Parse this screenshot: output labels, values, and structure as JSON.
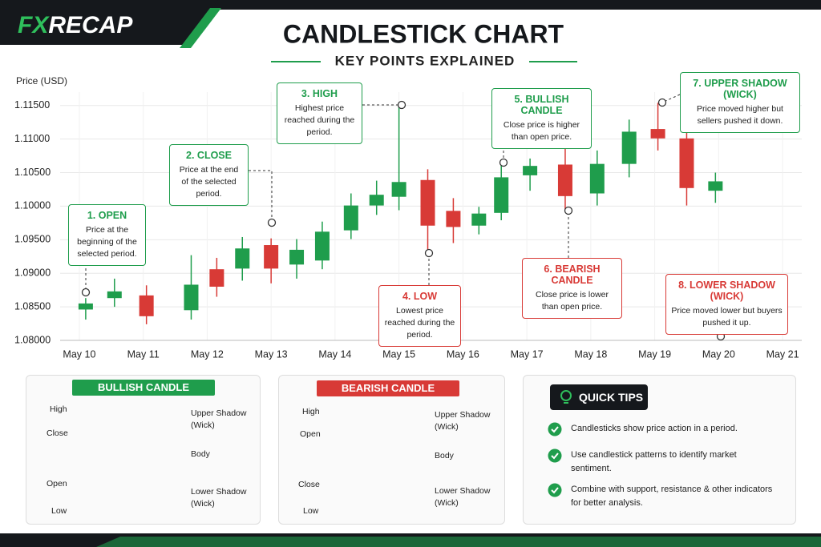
{
  "header": {
    "brand_fx": "FX",
    "brand_recap": "RECAP",
    "title": "CANDLESTICK CHART",
    "subtitle": "KEY POINTS EXPLAINED"
  },
  "chart_data": {
    "type": "candlestick",
    "y_label": "Price (USD)",
    "x": [
      10.1,
      10.55,
      11.05,
      11.75,
      12.15,
      12.55,
      13.0,
      13.4,
      13.8,
      14.25,
      14.65,
      15.0,
      15.45,
      15.85,
      16.25,
      16.6,
      17.05,
      17.6,
      18.1,
      18.6,
      19.05,
      19.5,
      19.95
    ],
    "open": [
      1.0846,
      1.0863,
      1.0867,
      1.0845,
      1.0906,
      1.0907,
      1.0942,
      1.0913,
      1.0919,
      1.0964,
      1.1001,
      1.1014,
      1.1039,
      1.0993,
      1.0971,
      1.099,
      1.1046,
      1.1062,
      1.1019,
      1.1063,
      1.1115,
      1.1101,
      1.1023
    ],
    "high": [
      1.0863,
      1.0892,
      1.0882,
      1.0927,
      1.0923,
      1.0954,
      1.0952,
      1.0951,
      1.0977,
      1.1019,
      1.1038,
      1.115,
      1.1055,
      1.1012,
      1.0999,
      1.1064,
      1.1071,
      1.1088,
      1.1083,
      1.1129,
      1.1154,
      1.1115,
      1.105
    ],
    "low": [
      1.0831,
      1.085,
      1.0824,
      1.0831,
      1.0865,
      1.0889,
      1.0885,
      1.0892,
      1.0906,
      1.0951,
      1.0987,
      1.0994,
      1.093,
      1.0945,
      1.0958,
      1.0979,
      1.1023,
      1.0993,
      1.1001,
      1.1043,
      1.1083,
      1.1001,
      1.1005
    ],
    "close": [
      1.0855,
      1.0873,
      1.0836,
      1.0883,
      1.088,
      1.0937,
      1.0907,
      1.0935,
      1.0962,
      1.1001,
      1.1017,
      1.1036,
      1.0971,
      1.0969,
      1.0989,
      1.1043,
      1.106,
      1.1015,
      1.1063,
      1.1111,
      1.1101,
      1.1027,
      1.1037
    ],
    "up_color": "#1f9d4c",
    "down_color": "#d83a36",
    "xlim": [
      9.7,
      21.3
    ],
    "xticks": [
      {
        "value": 10,
        "label": "May 10"
      },
      {
        "value": 11,
        "label": "May 11"
      },
      {
        "value": 12,
        "label": "May 12"
      },
      {
        "value": 13,
        "label": "May 13"
      },
      {
        "value": 14,
        "label": "May 14"
      },
      {
        "value": 15,
        "label": "May 15"
      },
      {
        "value": 16,
        "label": "May 16"
      },
      {
        "value": 17,
        "label": "May 17"
      },
      {
        "value": 18,
        "label": "May 18"
      },
      {
        "value": 19,
        "label": "May 19"
      },
      {
        "value": 20,
        "label": "May 20"
      },
      {
        "value": 21,
        "label": "May 21"
      }
    ],
    "ylim": [
      1.08,
      1.117
    ],
    "yticks": [
      {
        "value": 1.08,
        "label": "1.08000"
      },
      {
        "value": 1.085,
        "label": "1.08500"
      },
      {
        "value": 1.09,
        "label": "1.09000"
      },
      {
        "value": 1.095,
        "label": "1.09500"
      },
      {
        "value": 1.1,
        "label": "1.10000"
      },
      {
        "value": 1.105,
        "label": "1.10500"
      },
      {
        "value": 1.11,
        "label": "1.11000"
      },
      {
        "value": 1.115,
        "label": "1.11500"
      }
    ],
    "grid": true,
    "annotations": [
      {
        "title": "1. OPEN",
        "text": "Price at the beginning of the selected period."
      },
      {
        "title": "2. CLOSE",
        "text": "Price at the end of the selected period."
      },
      {
        "title": "3. HIGH",
        "text": "Highest price reached during the period."
      },
      {
        "title": "4. LOW",
        "text": "Lowest price reached during the period."
      },
      {
        "title": "5. BULLISH CANDLE",
        "text": "Close price is higher than open price."
      },
      {
        "title": "6. BEARISH CANDLE",
        "text": "Close price is lower than open price."
      },
      {
        "title": "7. UPPER SHADOW (WICK)",
        "text": "Price moved higher but sellers pushed it down."
      },
      {
        "title": "8. LOWER SHADOW (WICK)",
        "text": "Price moved lower but buyers pushed it up."
      }
    ]
  },
  "bullish_panel": {
    "title": "BULLISH CANDLE",
    "high": "High",
    "close": "Close",
    "open": "Open",
    "low": "Low",
    "upper_shadow": "Upper Shadow (Wick)",
    "body": "Body",
    "lower_shadow": "Lower Shadow (Wick)"
  },
  "bearish_panel": {
    "title": "BEARISH CANDLE",
    "high": "High",
    "open": "Open",
    "close": "Close",
    "low": "Low",
    "upper_shadow": "Upper Shadow (Wick)",
    "body": "Body",
    "lower_shadow": "Lower Shadow (Wick)"
  },
  "quick_tips": {
    "title": "QUICK TIPS",
    "items": [
      "Candlesticks show price action in a period.",
      "Use candlestick patterns to identify market sentiment.",
      "Combine with support, resistance & other indicators for better analysis."
    ]
  }
}
